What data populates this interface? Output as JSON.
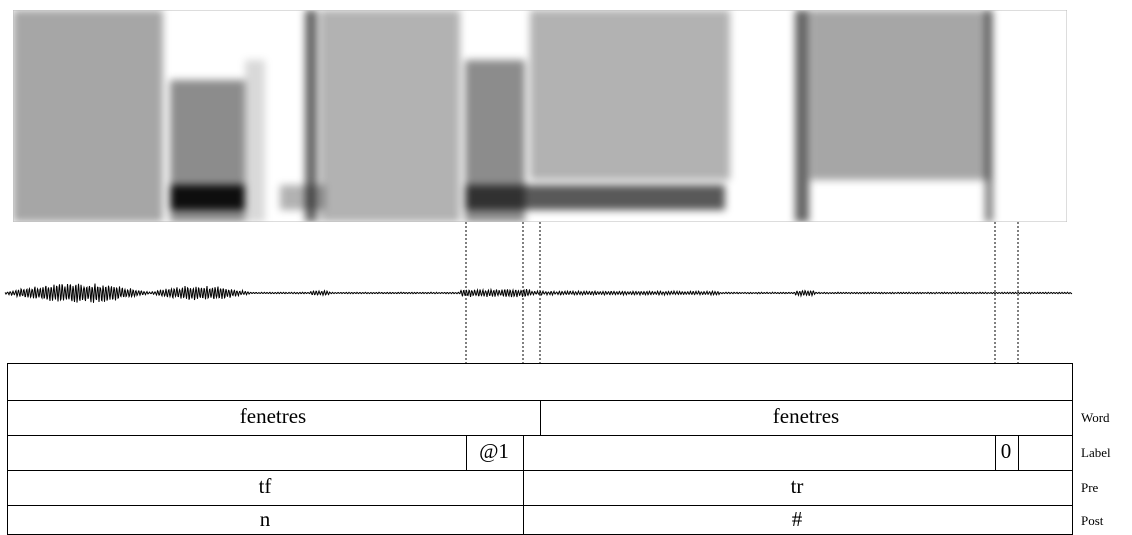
{
  "tiers": [
    {
      "name": "Word",
      "intervals": [
        "fenetres",
        "fenetres"
      ]
    },
    {
      "name": "Label",
      "intervals": [
        "@1",
        "0"
      ]
    },
    {
      "name": "Pre",
      "intervals": [
        "tf",
        "tr"
      ]
    },
    {
      "name": "Post",
      "intervals": [
        "n",
        "#"
      ]
    }
  ]
}
